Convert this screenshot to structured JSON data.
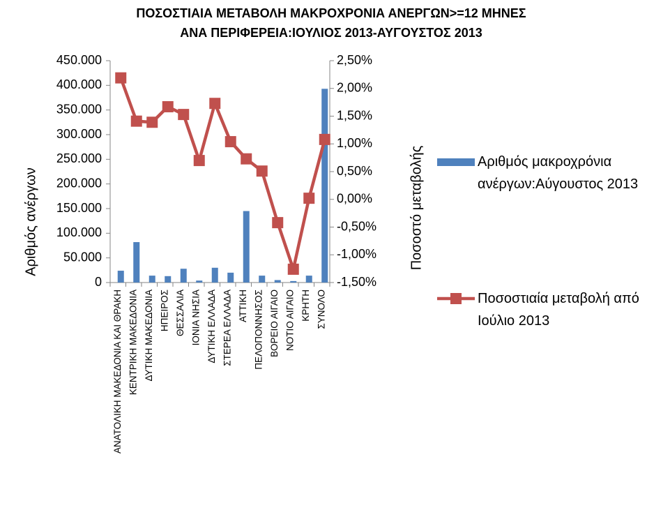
{
  "chart_data": {
    "type": "bar+line",
    "title": [
      "ΠΟΣΟΣΤΙΑΙΑ ΜΕΤΑΒΟΛΗ ΜΑΚΡΟΧΡΟΝΙΑ ΑΝΕΡΓΩΝ>=12 ΜΗΝΕΣ",
      "ΑΝΑ ΠΕΡΙΦΕΡΕΙΑ:ΙΟΥΛΙΟΣ 2013-ΑΥΓΟΥΣΤΟΣ 2013"
    ],
    "y_label": "Αριθμός ανέργων",
    "y2_label": "Ποσοστό μεταβολής",
    "categories": [
      "ΑΝΑΤΟΛΙΚΗ ΜΑΚΕΔΟΝΙΑ ΚΑΙ ΘΡΑΚΗ",
      "ΚΕΝΤΡΙΚΗ ΜΑΚΕΔΟΝΙΑ",
      "ΔΥΤΙΚΗ ΜΑΚΕΔΟΝΙΑ",
      "ΗΠΕΙΡΟΣ",
      "ΘΕΣΣΑΛΙΑ",
      "ΙΟΝΙΑ ΝΗΣΙΑ",
      "ΔΥΤΙΚΗ ΕΛΛΑΔΑ",
      "ΣΤΕΡΕΑ ΕΛΛΑΔΑ",
      "ΑΤΤΙΚΗ",
      "ΠΕΛΟΠΟΝΝΗΣΟΣ",
      "ΒΟΡΕΙΟ ΑΙΓΑΙΟ",
      "ΝΟΤΙΟ ΑΙΓΑΙΟ",
      "ΚΡΗΤΗ",
      "ΣΥΝΟΛΟ"
    ],
    "series": [
      {
        "name": "Αριθμός μακροχρόνια ανέργων:Αύγουστος 2013",
        "type": "bar",
        "color": "#4f81bd",
        "values": [
          24000,
          82000,
          14000,
          13000,
          28000,
          4000,
          30000,
          20000,
          145000,
          14000,
          5000,
          3000,
          14000,
          393000
        ]
      },
      {
        "name": "Ποσοστιαία μεταβολή από Ιούλιο 2013",
        "type": "line",
        "axis": "y2",
        "color": "#c0504d",
        "values": [
          2.19,
          1.41,
          1.39,
          1.67,
          1.53,
          0.7,
          1.73,
          1.04,
          0.73,
          0.51,
          -0.42,
          -1.26,
          0.02,
          1.08
        ]
      }
    ],
    "ylim": [
      0,
      450000
    ],
    "yticks": [
      0,
      {
        "value": 50000,
        "label": "50.000"
      },
      {
        "value": 100000,
        "label": "100.000"
      },
      {
        "value": 150000,
        "label": "150.000"
      },
      {
        "value": 200000,
        "label": "200.000"
      },
      {
        "value": 250000,
        "label": "250.000"
      },
      {
        "value": 300000,
        "label": "300.000"
      },
      {
        "value": 350000,
        "label": "350.000"
      },
      {
        "value": 400000,
        "label": "400.000"
      },
      {
        "value": 450000,
        "label": "450.000"
      }
    ],
    "y2lim": [
      -1.5,
      2.5
    ],
    "y2ticks": [
      {
        "value": -1.5,
        "label": "-1,50%"
      },
      {
        "value": -1,
        "label": "-1,00%"
      },
      {
        "value": -0.5,
        "label": "-0,50%"
      },
      {
        "value": 0,
        "label": "0,00%"
      },
      {
        "value": 0.5,
        "label": "0,50%"
      },
      {
        "value": 1,
        "label": "1,00%"
      },
      {
        "value": 1.5,
        "label": "1,50%"
      },
      {
        "value": 2,
        "label": "2,00%"
      },
      {
        "value": 2.5,
        "label": "2,50%"
      }
    ],
    "legend": "right",
    "grid": false
  }
}
